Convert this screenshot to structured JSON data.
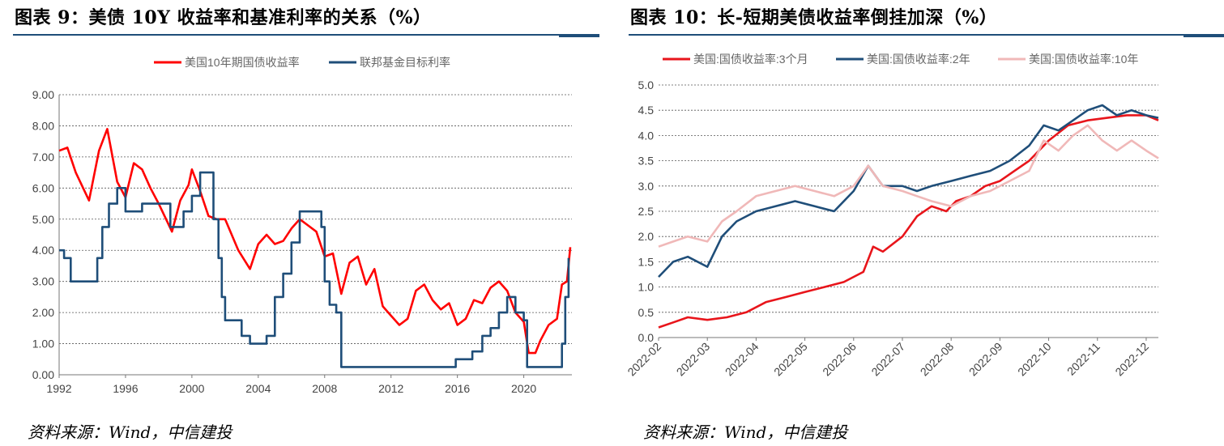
{
  "left": {
    "title": "图表  9：美债 10Y 收益率和基准利率的关系（%）",
    "source": "资料来源：Wind，中信建投"
  },
  "right": {
    "title": "图表  10：长-短期美债收益率倒挂加深（%）",
    "source": "资料来源：Wind，中信建投"
  },
  "chart_data": [
    {
      "type": "line",
      "title": "",
      "xlabel": "",
      "ylabel": "",
      "x_ticks": [
        "1992",
        "1996",
        "2000",
        "2004",
        "2008",
        "2012",
        "2016",
        "2020"
      ],
      "y_ticks": [
        "9.00",
        "8.00",
        "7.00",
        "6.00",
        "5.00",
        "4.00",
        "3.00",
        "2.00",
        "1.00",
        "0.00"
      ],
      "xlim": [
        1992,
        2022.9
      ],
      "ylim": [
        0,
        9
      ],
      "grid": "horizontal-dashed",
      "legend": "top-center",
      "series": [
        {
          "name": "美国10年期国债收益率",
          "color": "#ff0000",
          "x": [
            1992,
            1992.5,
            1993,
            1993.8,
            1994.4,
            1994.9,
            1995.5,
            1996,
            1996.5,
            1997,
            1997.5,
            1998,
            1998.8,
            1999.3,
            1999.8,
            2000,
            2000.5,
            2001,
            2001.5,
            2002,
            2002.8,
            2003.5,
            2004,
            2004.5,
            2005,
            2005.5,
            2006,
            2006.5,
            2007,
            2007.5,
            2008,
            2008.5,
            2009,
            2009.5,
            2010,
            2010.5,
            2011,
            2011.5,
            2012,
            2012.5,
            2013,
            2013.5,
            2014,
            2014.5,
            2015,
            2015.5,
            2016,
            2016.5,
            2017,
            2017.5,
            2018,
            2018.5,
            2019,
            2019.5,
            2020,
            2020.3,
            2020.7,
            2021,
            2021.5,
            2022,
            2022.3,
            2022.6,
            2022.8
          ],
          "values": [
            7.2,
            7.3,
            6.5,
            5.6,
            7.2,
            7.9,
            6.2,
            5.7,
            6.8,
            6.6,
            6.0,
            5.5,
            4.6,
            5.6,
            6.1,
            6.6,
            5.9,
            5.1,
            5.0,
            5.0,
            4.0,
            3.4,
            4.2,
            4.5,
            4.2,
            4.3,
            4.7,
            5.0,
            4.8,
            4.6,
            3.8,
            3.9,
            2.6,
            3.6,
            3.8,
            2.9,
            3.4,
            2.2,
            1.9,
            1.6,
            1.8,
            2.7,
            2.9,
            2.4,
            2.1,
            2.3,
            1.6,
            1.8,
            2.4,
            2.3,
            2.8,
            3.0,
            2.7,
            2.0,
            1.7,
            0.7,
            0.7,
            1.1,
            1.6,
            1.8,
            2.9,
            3.0,
            4.1
          ]
        },
        {
          "name": "联邦基金目标利率",
          "color": "#1f4e79",
          "x": [
            1992,
            1992.3,
            1992.7,
            1993,
            1994,
            1994.3,
            1994.6,
            1995,
            1995.5,
            1996,
            1997,
            1998,
            1998.7,
            1999,
            1999.5,
            2000,
            2000.5,
            2001,
            2001.3,
            2001.6,
            2001.8,
            2002,
            2003,
            2003.5,
            2004.5,
            2005,
            2005.5,
            2006,
            2006.5,
            2007,
            2007.5,
            2007.8,
            2008,
            2008.3,
            2008.7,
            2009,
            2015,
            2015.9,
            2016.9,
            2017.5,
            2018,
            2018.5,
            2019,
            2019.5,
            2020,
            2020.2,
            2022,
            2022.3,
            2022.5,
            2022.7
          ],
          "values": [
            4.0,
            3.75,
            3.0,
            3.0,
            3.0,
            3.75,
            4.75,
            5.5,
            6.0,
            5.25,
            5.5,
            5.5,
            4.75,
            4.75,
            5.25,
            5.75,
            6.5,
            6.5,
            5.0,
            3.75,
            2.5,
            1.75,
            1.25,
            1.0,
            1.25,
            2.5,
            3.25,
            4.25,
            5.25,
            5.25,
            5.25,
            4.75,
            3.0,
            2.25,
            2.0,
            0.25,
            0.25,
            0.5,
            0.75,
            1.25,
            1.5,
            2.0,
            2.5,
            2.0,
            1.75,
            0.25,
            0.25,
            1.0,
            2.5,
            3.75
          ]
        }
      ]
    },
    {
      "type": "line",
      "title": "",
      "xlabel": "",
      "ylabel": "",
      "x_ticks": [
        "2022-02",
        "2022-03",
        "2022-04",
        "2022-05",
        "2022-06",
        "2022-07",
        "2022-08",
        "2022-09",
        "2022-10",
        "2022-11",
        "2022-12"
      ],
      "y_ticks": [
        "5.0",
        "4.5",
        "4.0",
        "3.5",
        "3.0",
        "2.5",
        "2.0",
        "1.5",
        "1.0",
        "0.5",
        "0.0"
      ],
      "xlim": [
        0,
        10.25
      ],
      "ylim": [
        0,
        5
      ],
      "grid": "horizontal-dashed",
      "legend": "top-center",
      "series": [
        {
          "name": "美国:国债收益率:3个月",
          "color": "#e8151b",
          "x": [
            0,
            0.3,
            0.6,
            1.0,
            1.4,
            1.8,
            2.2,
            2.6,
            3.0,
            3.4,
            3.8,
            4.2,
            4.4,
            4.6,
            5.0,
            5.3,
            5.6,
            5.9,
            6.1,
            6.4,
            6.7,
            7.0,
            7.3,
            7.6,
            8.0,
            8.4,
            8.8,
            9.2,
            9.6,
            10.0,
            10.25
          ],
          "values": [
            0.2,
            0.3,
            0.4,
            0.35,
            0.4,
            0.5,
            0.7,
            0.8,
            0.9,
            1.0,
            1.1,
            1.3,
            1.8,
            1.7,
            2.0,
            2.4,
            2.6,
            2.5,
            2.7,
            2.8,
            3.0,
            3.1,
            3.3,
            3.5,
            3.9,
            4.2,
            4.3,
            4.35,
            4.4,
            4.4,
            4.3
          ]
        },
        {
          "name": "美国:国债收益率:2年",
          "color": "#1f4e79",
          "x": [
            0,
            0.3,
            0.6,
            1.0,
            1.3,
            1.6,
            2.0,
            2.4,
            2.8,
            3.2,
            3.6,
            4.0,
            4.3,
            4.6,
            5.0,
            5.3,
            5.6,
            6.0,
            6.4,
            6.8,
            7.2,
            7.6,
            7.9,
            8.2,
            8.5,
            8.8,
            9.1,
            9.4,
            9.7,
            10.0,
            10.25
          ],
          "values": [
            1.2,
            1.5,
            1.6,
            1.4,
            2.0,
            2.3,
            2.5,
            2.6,
            2.7,
            2.6,
            2.5,
            2.9,
            3.4,
            3.0,
            3.0,
            2.9,
            3.0,
            3.1,
            3.2,
            3.3,
            3.5,
            3.8,
            4.2,
            4.1,
            4.3,
            4.5,
            4.6,
            4.4,
            4.5,
            4.4,
            4.35
          ]
        },
        {
          "name": "美国:国债收益率:10年",
          "color": "#f0b8b8",
          "x": [
            0,
            0.3,
            0.6,
            1.0,
            1.3,
            1.6,
            2.0,
            2.4,
            2.8,
            3.2,
            3.6,
            4.0,
            4.3,
            4.6,
            5.0,
            5.3,
            5.6,
            6.0,
            6.4,
            6.8,
            7.2,
            7.6,
            7.9,
            8.2,
            8.5,
            8.8,
            9.1,
            9.4,
            9.7,
            10.0,
            10.25
          ],
          "values": [
            1.8,
            1.9,
            2.0,
            1.9,
            2.3,
            2.5,
            2.8,
            2.9,
            3.0,
            2.9,
            2.8,
            3.0,
            3.4,
            3.0,
            2.9,
            2.8,
            2.7,
            2.6,
            2.8,
            2.9,
            3.1,
            3.3,
            3.9,
            3.7,
            4.0,
            4.2,
            3.9,
            3.7,
            3.9,
            3.7,
            3.55
          ]
        }
      ]
    }
  ]
}
